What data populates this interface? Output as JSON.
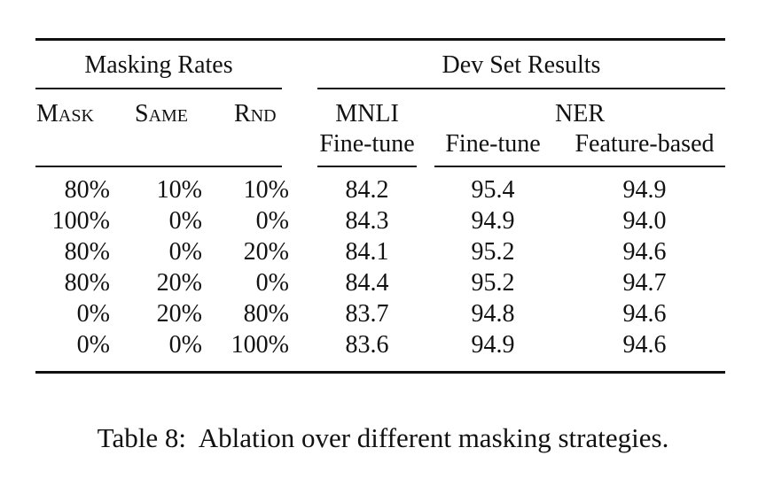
{
  "table": {
    "group_headers": {
      "masking_rates": "Masking Rates",
      "dev_set_results": "Dev Set Results"
    },
    "col_headers": {
      "mask": "Mask",
      "same": "Same",
      "rnd": "Rnd",
      "mnli": "MNLI",
      "ner": "NER",
      "mnli_sub": "Fine-tune",
      "ner_finetune": "Fine-tune",
      "ner_feature": "Feature-based"
    },
    "rows": [
      {
        "mask": "80%",
        "same": "10%",
        "rnd": "10%",
        "mnli": "84.2",
        "ner_ft": "95.4",
        "ner_fb": "94.9"
      },
      {
        "mask": "100%",
        "same": "0%",
        "rnd": "0%",
        "mnli": "84.3",
        "ner_ft": "94.9",
        "ner_fb": "94.0"
      },
      {
        "mask": "80%",
        "same": "0%",
        "rnd": "20%",
        "mnli": "84.1",
        "ner_ft": "95.2",
        "ner_fb": "94.6"
      },
      {
        "mask": "80%",
        "same": "20%",
        "rnd": "0%",
        "mnli": "84.4",
        "ner_ft": "95.2",
        "ner_fb": "94.7"
      },
      {
        "mask": "0%",
        "same": "20%",
        "rnd": "80%",
        "mnli": "83.7",
        "ner_ft": "94.8",
        "ner_fb": "94.6"
      },
      {
        "mask": "0%",
        "same": "0%",
        "rnd": "100%",
        "mnli": "83.6",
        "ner_ft": "94.9",
        "ner_fb": "94.6"
      }
    ]
  },
  "caption": "Table 8:  Ablation over different masking strategies."
}
